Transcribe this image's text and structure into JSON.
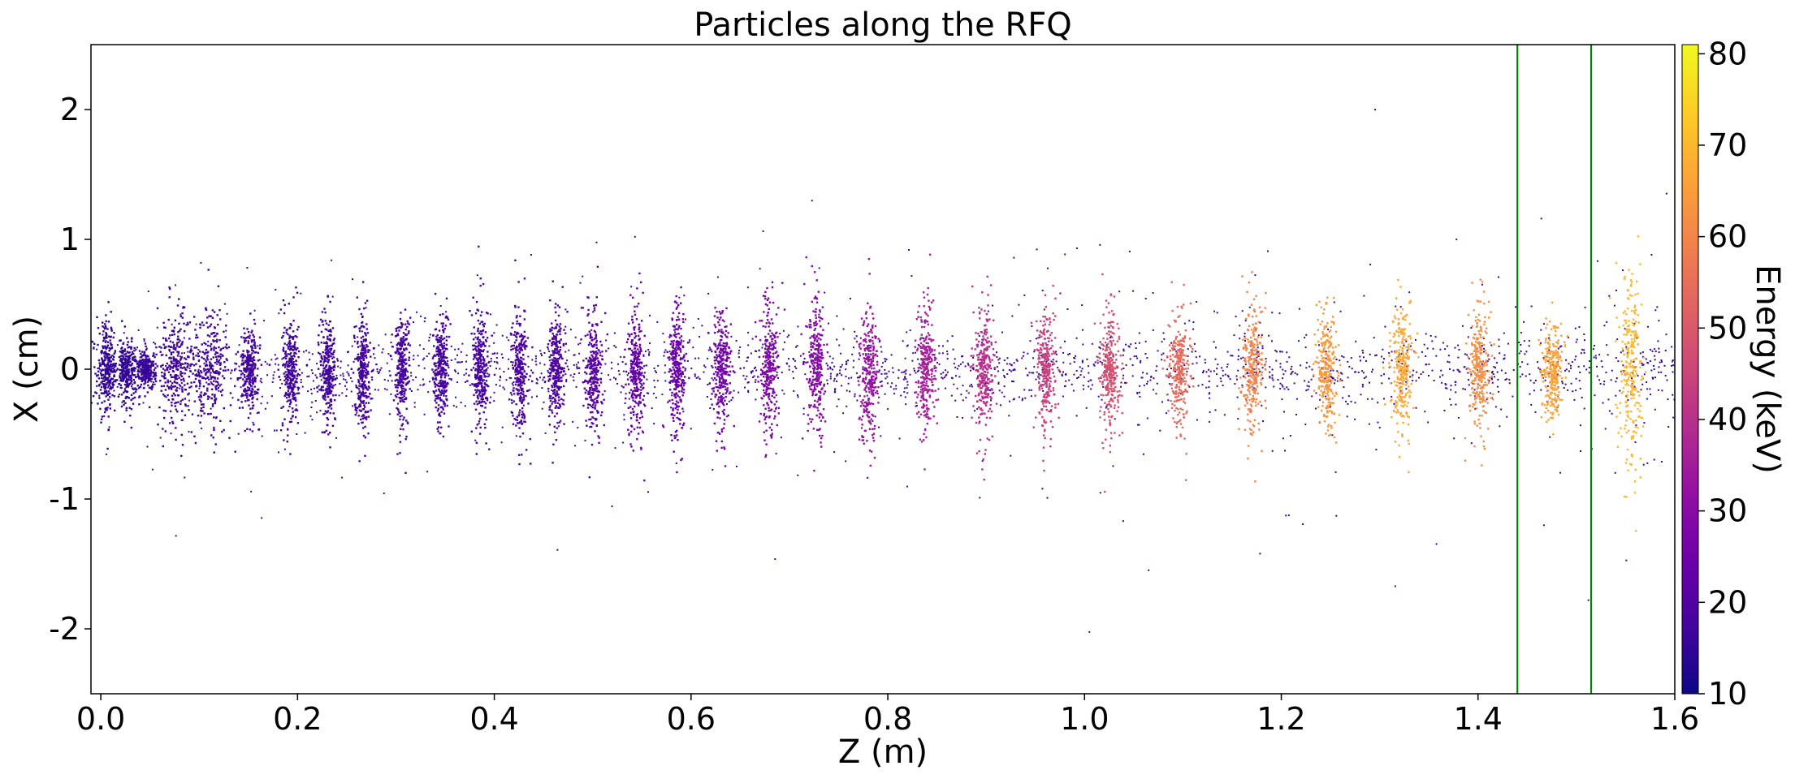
{
  "chart_data": {
    "type": "scatter",
    "title": "Particles along the RFQ",
    "xlabel": "Z (m)",
    "ylabel": "X (cm)",
    "xlim": [
      -0.01,
      1.6
    ],
    "ylim": [
      -2.5,
      2.5
    ],
    "x_ticks": [
      0.0,
      0.2,
      0.4,
      0.6,
      0.8,
      1.0,
      1.2,
      1.4,
      1.6
    ],
    "x_tick_labels": [
      "0.0",
      "0.2",
      "0.4",
      "0.6",
      "0.8",
      "1.0",
      "1.2",
      "1.4",
      "1.6"
    ],
    "y_ticks": [
      2,
      1,
      0,
      -1,
      -2
    ],
    "y_tick_labels": [
      "2",
      "1",
      "0",
      "-1",
      "-2"
    ],
    "colorbar": {
      "label": "Energy (keV)",
      "range": [
        10,
        81
      ],
      "ticks": [
        10,
        20,
        30,
        40,
        50,
        60,
        70,
        80
      ],
      "tick_labels": [
        "10",
        "20",
        "30",
        "40",
        "50",
        "60",
        "70",
        "80"
      ],
      "colormap": "plasma"
    },
    "vertical_lines": [
      {
        "x": 1.44,
        "color": "#008000"
      },
      {
        "x": 1.515,
        "color": "#008000"
      }
    ],
    "bunches": [
      {
        "z": 0.005,
        "width": 0.01,
        "half_height": 0.42,
        "energy": 15
      },
      {
        "z": 0.025,
        "width": 0.01,
        "half_height": 0.3,
        "energy": 15
      },
      {
        "z": 0.045,
        "width": 0.01,
        "half_height": 0.18,
        "energy": 16
      },
      {
        "z": 0.075,
        "width": 0.02,
        "half_height": 0.55,
        "energy": 17
      },
      {
        "z": 0.11,
        "width": 0.022,
        "half_height": 0.6,
        "energy": 17
      },
      {
        "z": 0.15,
        "width": 0.01,
        "half_height": 0.4,
        "energy": 17
      },
      {
        "z": 0.192,
        "width": 0.008,
        "half_height": 0.55,
        "energy": 17
      },
      {
        "z": 0.23,
        "width": 0.008,
        "half_height": 0.6,
        "energy": 17
      },
      {
        "z": 0.265,
        "width": 0.008,
        "half_height": 0.55,
        "energy": 18
      },
      {
        "z": 0.305,
        "width": 0.008,
        "half_height": 0.55,
        "energy": 18
      },
      {
        "z": 0.345,
        "width": 0.008,
        "half_height": 0.55,
        "energy": 18
      },
      {
        "z": 0.385,
        "width": 0.009,
        "half_height": 0.6,
        "energy": 18
      },
      {
        "z": 0.425,
        "width": 0.008,
        "half_height": 0.6,
        "energy": 19
      },
      {
        "z": 0.462,
        "width": 0.008,
        "half_height": 0.55,
        "energy": 19
      },
      {
        "z": 0.5,
        "width": 0.009,
        "half_height": 0.6,
        "energy": 21
      },
      {
        "z": 0.543,
        "width": 0.009,
        "half_height": 0.65,
        "energy": 23
      },
      {
        "z": 0.585,
        "width": 0.009,
        "half_height": 0.65,
        "energy": 24
      },
      {
        "z": 0.63,
        "width": 0.01,
        "half_height": 0.6,
        "energy": 26
      },
      {
        "z": 0.678,
        "width": 0.01,
        "half_height": 0.65,
        "energy": 28
      },
      {
        "z": 0.727,
        "width": 0.01,
        "half_height": 0.65,
        "energy": 30
      },
      {
        "z": 0.78,
        "width": 0.01,
        "half_height": 0.65,
        "energy": 33
      },
      {
        "z": 0.838,
        "width": 0.01,
        "half_height": 0.65,
        "energy": 36
      },
      {
        "z": 0.897,
        "width": 0.01,
        "half_height": 0.65,
        "energy": 40
      },
      {
        "z": 0.96,
        "width": 0.01,
        "half_height": 0.6,
        "energy": 44
      },
      {
        "z": 1.025,
        "width": 0.01,
        "half_height": 0.6,
        "energy": 48
      },
      {
        "z": 1.095,
        "width": 0.011,
        "half_height": 0.55,
        "energy": 54
      },
      {
        "z": 1.17,
        "width": 0.011,
        "half_height": 0.6,
        "energy": 60
      },
      {
        "z": 1.245,
        "width": 0.011,
        "half_height": 0.6,
        "energy": 64
      },
      {
        "z": 1.322,
        "width": 0.011,
        "half_height": 0.6,
        "energy": 67
      },
      {
        "z": 1.4,
        "width": 0.011,
        "half_height": 0.6,
        "energy": 62
      },
      {
        "z": 1.475,
        "width": 0.011,
        "half_height": 0.45,
        "energy": 66
      },
      {
        "z": 1.555,
        "width": 0.012,
        "half_height": 0.95,
        "energy": 70
      }
    ]
  }
}
